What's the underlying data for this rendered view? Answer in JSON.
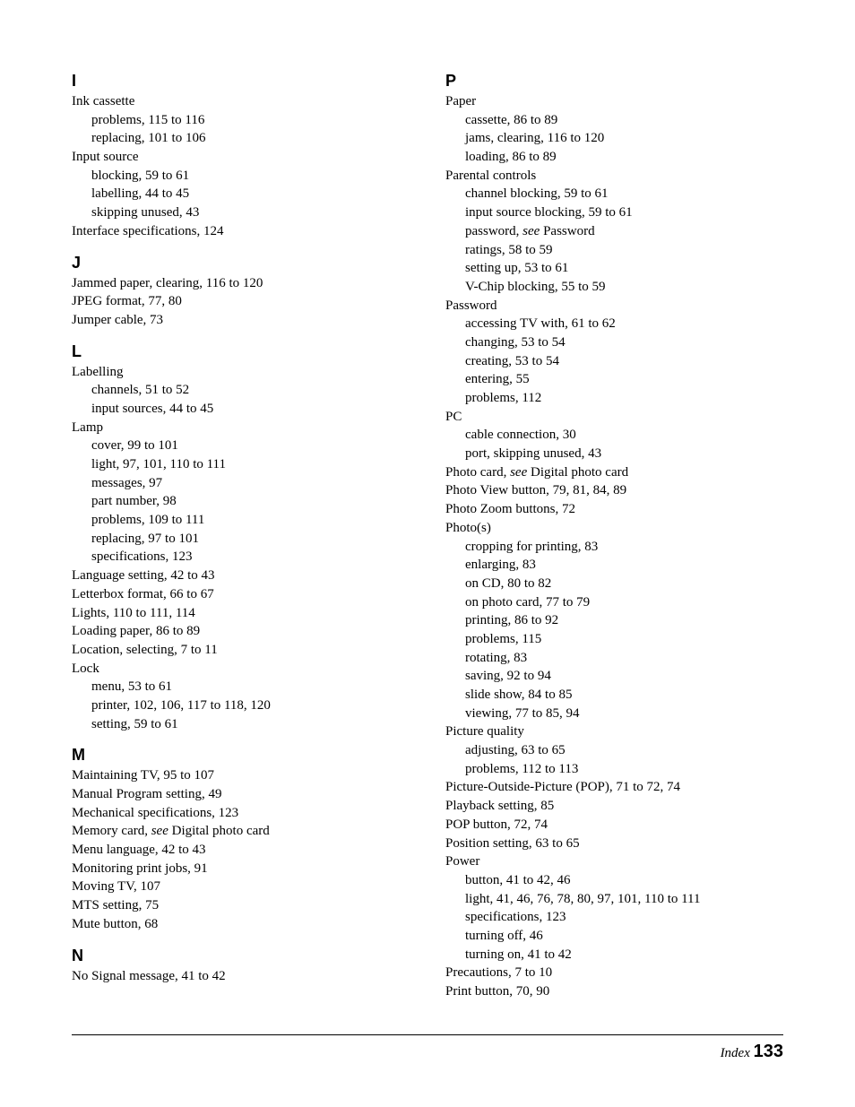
{
  "left": {
    "I": {
      "letter": "I",
      "items": [
        {
          "text": "Ink cassette",
          "sub": [
            {
              "text": "problems, 115 to 116"
            },
            {
              "text": "replacing, 101 to 106"
            }
          ]
        },
        {
          "text": "Input source",
          "sub": [
            {
              "text": "blocking, 59 to 61"
            },
            {
              "text": "labelling, 44 to 45"
            },
            {
              "text": "skipping unused, 43"
            }
          ]
        },
        {
          "text": "Interface specifications, 124"
        }
      ]
    },
    "J": {
      "letter": "J",
      "items": [
        {
          "text": "Jammed paper, clearing, 116 to 120"
        },
        {
          "text": "JPEG format, 77, 80"
        },
        {
          "text": "Jumper cable, 73"
        }
      ]
    },
    "L": {
      "letter": "L",
      "items": [
        {
          "text": "Labelling",
          "sub": [
            {
              "text": "channels, 51 to 52"
            },
            {
              "text": "input sources, 44 to 45"
            }
          ]
        },
        {
          "text": "Lamp",
          "sub": [
            {
              "text": "cover, 99 to 101"
            },
            {
              "text": "light, 97, 101, 110 to 111"
            },
            {
              "text": "messages, 97"
            },
            {
              "text": "part number, 98"
            },
            {
              "text": "problems, 109 to 111"
            },
            {
              "text": "replacing, 97 to 101"
            },
            {
              "text": "specifications, 123"
            }
          ]
        },
        {
          "text": "Language setting, 42 to 43"
        },
        {
          "text": "Letterbox format, 66 to 67"
        },
        {
          "text": "Lights, 110 to 111, 114"
        },
        {
          "text": "Loading paper, 86 to 89"
        },
        {
          "text": "Location, selecting, 7 to 11"
        },
        {
          "text": "Lock",
          "sub": [
            {
              "text": "menu, 53 to 61"
            },
            {
              "text": "printer, 102, 106, 117 to 118, 120"
            },
            {
              "text": "setting, 59 to 61"
            }
          ]
        }
      ]
    },
    "M": {
      "letter": "M",
      "items": [
        {
          "text": "Maintaining TV, 95 to 107"
        },
        {
          "text": "Manual Program setting, 49"
        },
        {
          "text": "Mechanical specifications, 123"
        },
        {
          "pre": "Memory card, ",
          "italic": "see",
          "post": " Digital photo card"
        },
        {
          "text": "Menu language, 42 to 43"
        },
        {
          "text": "Monitoring print jobs, 91"
        },
        {
          "text": "Moving TV, 107"
        },
        {
          "text": "MTS setting, 75"
        },
        {
          "text": "Mute button, 68"
        }
      ]
    },
    "N": {
      "letter": "N",
      "items": [
        {
          "text": "No Signal message, 41 to 42"
        }
      ]
    }
  },
  "right": {
    "P": {
      "letter": "P",
      "items": [
        {
          "text": "Paper",
          "sub": [
            {
              "text": "cassette, 86 to 89"
            },
            {
              "text": "jams, clearing, 116 to 120"
            },
            {
              "text": "loading, 86 to 89"
            }
          ]
        },
        {
          "text": "Parental controls",
          "sub": [
            {
              "text": "channel blocking, 59 to 61"
            },
            {
              "text": "input source blocking, 59 to 61"
            },
            {
              "pre": "password, ",
              "italic": "see",
              "post": " Password"
            },
            {
              "text": "ratings, 58 to 59"
            },
            {
              "text": "setting up, 53 to 61"
            },
            {
              "text": "V-Chip blocking, 55 to 59"
            }
          ]
        },
        {
          "text": "Password",
          "sub": [
            {
              "text": "accessing TV with, 61 to 62"
            },
            {
              "text": "changing, 53 to 54"
            },
            {
              "text": "creating, 53 to 54"
            },
            {
              "text": "entering, 55"
            },
            {
              "text": "problems, 112"
            }
          ]
        },
        {
          "text": "PC",
          "sub": [
            {
              "text": "cable connection, 30"
            },
            {
              "text": "port, skipping unused, 43"
            }
          ]
        },
        {
          "pre": "Photo card, ",
          "italic": "see",
          "post": " Digital photo card"
        },
        {
          "text": "Photo View button, 79, 81, 84, 89"
        },
        {
          "text": "Photo Zoom buttons, 72"
        },
        {
          "text": "Photo(s)",
          "sub": [
            {
              "text": "cropping for printing, 83"
            },
            {
              "text": "enlarging, 83"
            },
            {
              "text": "on CD, 80 to 82"
            },
            {
              "text": "on photo card, 77 to 79"
            },
            {
              "text": "printing, 86 to 92"
            },
            {
              "text": "problems, 115"
            },
            {
              "text": "rotating, 83"
            },
            {
              "text": "saving, 92 to 94"
            },
            {
              "text": "slide show, 84 to 85"
            },
            {
              "text": "viewing, 77 to 85, 94"
            }
          ]
        },
        {
          "text": "Picture quality",
          "sub": [
            {
              "text": "adjusting, 63 to 65"
            },
            {
              "text": "problems, 112 to 113"
            }
          ]
        },
        {
          "text": "Picture-Outside-Picture (POP), 71 to 72, 74"
        },
        {
          "text": "Playback setting, 85"
        },
        {
          "text": "POP button, 72, 74"
        },
        {
          "text": "Position setting, 63 to 65"
        },
        {
          "text": "Power",
          "sub": [
            {
              "text": "button, 41 to 42, 46"
            },
            {
              "text": "light, 41, 46, 76, 78, 80, 97, 101, 110 to 111"
            },
            {
              "text": "specifications, 123"
            },
            {
              "text": "turning off, 46"
            },
            {
              "text": "turning on, 41 to 42"
            }
          ]
        },
        {
          "text": "Precautions, 7 to 10"
        },
        {
          "text": "Print button, 70, 90"
        }
      ]
    }
  },
  "footer": {
    "label": "Index",
    "page": "133"
  }
}
